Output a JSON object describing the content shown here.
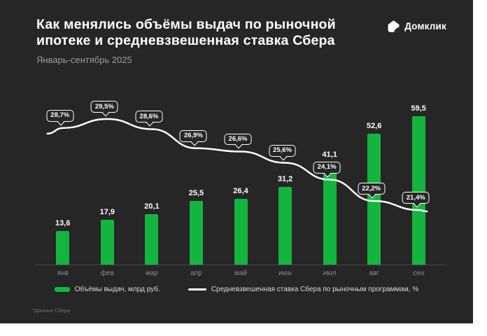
{
  "header": {
    "title_line1": "Как менялись объёмы выдач по рыночной",
    "title_line2": "ипотеке и средневзвешенная ставка Сбера",
    "subtitle": "Январь-сентябрь 2025"
  },
  "logo": {
    "text": "Домклик"
  },
  "footer": {
    "note": "*Данные Сбера"
  },
  "colors": {
    "background": "#262626",
    "bar_green": "#14b53f",
    "line_white": "#ffffff",
    "axis_gray": "#4a4a4a",
    "muted_text": "#9c9c9c"
  },
  "chart_data": {
    "type": "combo",
    "title": "Как менялись объёмы выдач по рыночной ипотеке и средневзвешенная ставка Сбера",
    "subtitle": "Январь-сентябрь 2025",
    "categories": [
      "янв",
      "фев",
      "мар",
      "апр",
      "май",
      "июн",
      "июл",
      "авг",
      "сен"
    ],
    "series": [
      {
        "name": "Объёмы выдач, млрд руб.",
        "type": "bar",
        "values": [
          13.6,
          17.9,
          20.1,
          25.5,
          26.4,
          31.2,
          41.1,
          52.6,
          59.5
        ],
        "labels": [
          "13,6",
          "17,9",
          "20,1",
          "25,5",
          "26,4",
          "31,2",
          "41,1",
          "52,6",
          "59,5"
        ],
        "color": "#14b53f"
      },
      {
        "name": "Средневзвешенная ставка Сбера по рыночным программам, %",
        "type": "line",
        "values": [
          28.7,
          29.5,
          28.6,
          26.9,
          26.6,
          25.6,
          24.1,
          22.2,
          21.4
        ],
        "labels": [
          "28,7%",
          "29,5%",
          "28,6%",
          "26,9%",
          "26,6%",
          "25,6%",
          "24,1%",
          "22,2%",
          "21,4%"
        ],
        "color": "#ffffff"
      }
    ],
    "legend_position": "bottom",
    "grid": false,
    "bar_ylim": [
      0,
      65
    ],
    "rate_ylim": [
      20,
      31
    ],
    "source_note": "*Данные Сбера"
  }
}
